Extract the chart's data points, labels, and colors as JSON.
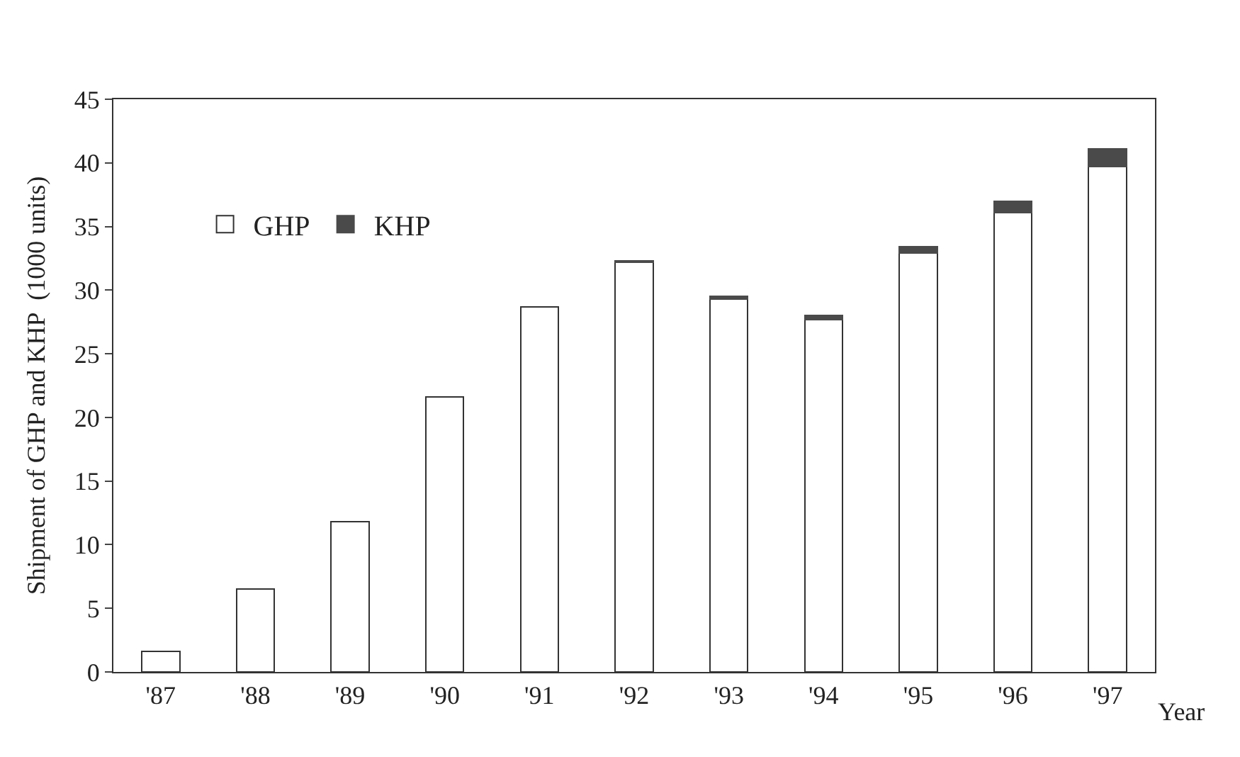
{
  "chart_data": {
    "type": "bar",
    "stacked": true,
    "xlabel": "Year",
    "ylabel": "Shipment of GHP and KHP  (1000 units)",
    "categories": [
      "'87",
      "'88",
      "'89",
      "'90",
      "'91",
      "'92",
      "'93",
      "'94",
      "'95",
      "'96",
      "'97"
    ],
    "series": [
      {
        "name": "GHP",
        "color": "#ffffff",
        "values": [
          1.6,
          6.5,
          11.8,
          21.6,
          28.7,
          32.2,
          29.3,
          27.7,
          32.9,
          36.1,
          39.7
        ]
      },
      {
        "name": "KHP",
        "color": "#4a4a4a",
        "values": [
          null,
          null,
          null,
          null,
          null,
          0.1,
          0.2,
          0.3,
          0.5,
          0.9,
          1.4
        ]
      }
    ],
    "ylim": [
      0,
      45
    ],
    "yticks": [
      0,
      5,
      10,
      15,
      20,
      25,
      30,
      35,
      40,
      45
    ],
    "legend": "top left"
  }
}
